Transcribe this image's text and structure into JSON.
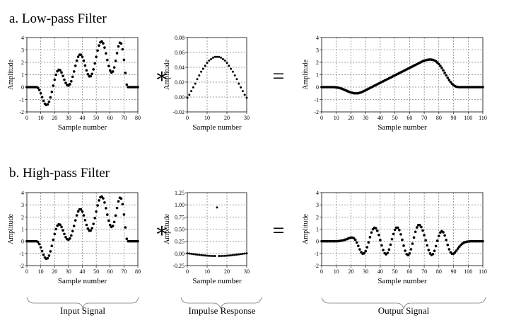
{
  "panel_titles": [
    "a. Low-pass Filter",
    "b. High-pass Filter"
  ],
  "operators": {
    "convolve": "∗",
    "equals": "="
  },
  "captions": [
    "Input Signal",
    "Impulse Response",
    "Output Signal"
  ],
  "chart_data": [
    {
      "type": "scatter",
      "panel": "a",
      "role": "input",
      "xlabel": "Sample number",
      "ylabel": "Amplitude",
      "xlim": [
        0,
        80
      ],
      "ylim": [
        -2,
        4
      ],
      "xticks": [
        0,
        10,
        20,
        30,
        40,
        50,
        60,
        70,
        80
      ],
      "yticks": [
        -2,
        -1,
        0,
        1,
        2,
        3,
        4
      ],
      "ytick_labels": [
        "-2",
        "-1",
        "0",
        "1",
        "2",
        "3",
        "4"
      ],
      "grid": true,
      "x": [
        0,
        1,
        2,
        3,
        4,
        5,
        6,
        7,
        8,
        9,
        10,
        11,
        12,
        13,
        14,
        15,
        16,
        17,
        18,
        19,
        20,
        21,
        22,
        23,
        24,
        25,
        26,
        27,
        28,
        29,
        30,
        31,
        32,
        33,
        34,
        35,
        36,
        37,
        38,
        39,
        40,
        41,
        42,
        43,
        44,
        45,
        46,
        47,
        48,
        49,
        50,
        51,
        52,
        53,
        54,
        55,
        56,
        57,
        58,
        59,
        60,
        61,
        62,
        63,
        64,
        65,
        66,
        67,
        68,
        69,
        70,
        71,
        72,
        73,
        74,
        75,
        76,
        77,
        78,
        79,
        80
      ],
      "y": [
        0,
        0,
        0,
        0,
        0,
        0,
        0,
        0,
        -0.06,
        -0.23,
        -0.5,
        -0.81,
        -1.11,
        -1.34,
        -1.44,
        -1.39,
        -1.18,
        -0.83,
        -0.38,
        0.12,
        0.6,
        1.0,
        1.28,
        1.4,
        1.36,
        1.18,
        0.9,
        0.6,
        0.34,
        0.17,
        0.13,
        0.23,
        0.47,
        0.83,
        1.26,
        1.72,
        2.13,
        2.45,
        2.62,
        2.62,
        2.44,
        2.13,
        1.74,
        1.35,
        1.04,
        0.87,
        0.88,
        1.07,
        1.43,
        1.91,
        2.44,
        2.95,
        3.36,
        3.62,
        3.68,
        3.53,
        3.19,
        2.72,
        2.19,
        1.7,
        1.34,
        1.18,
        1.26,
        1.59,
        2.12,
        2.74,
        3.28,
        3.58,
        3.52,
        3.05,
        2.2,
        1.14,
        0.2,
        0,
        0,
        0,
        0,
        0,
        0,
        0,
        0
      ]
    },
    {
      "type": "scatter",
      "panel": "a",
      "role": "impulse",
      "xlabel": "Sample number",
      "ylabel": "Amplitude",
      "xlim": [
        0,
        30
      ],
      "ylim": [
        -0.02,
        0.08
      ],
      "xticks": [
        0,
        10,
        20,
        30
      ],
      "yticks": [
        -0.02,
        0,
        0.02,
        0.04,
        0.06,
        0.08
      ],
      "ytick_labels": [
        "-0.02",
        "0.00",
        "0.02",
        "0.04",
        "0.06",
        "0.08"
      ],
      "grid": true,
      "x": [
        0,
        1,
        2,
        3,
        4,
        5,
        6,
        7,
        8,
        9,
        10,
        11,
        12,
        13,
        14,
        15,
        16,
        17,
        18,
        19,
        20,
        21,
        22,
        23,
        24,
        25,
        26,
        27,
        28,
        29,
        30
      ],
      "y": [
        -0.001,
        0.003,
        0.008,
        0.013,
        0.018,
        0.024,
        0.029,
        0.034,
        0.038,
        0.042,
        0.046,
        0.049,
        0.051,
        0.053,
        0.054,
        0.054,
        0.054,
        0.053,
        0.051,
        0.049,
        0.046,
        0.042,
        0.038,
        0.034,
        0.029,
        0.024,
        0.018,
        0.013,
        0.008,
        0.003,
        -0.001
      ]
    },
    {
      "type": "scatter",
      "panel": "a",
      "role": "output",
      "xlabel": "Sample number",
      "ylabel": "Amplitude",
      "xlim": [
        0,
        110
      ],
      "ylim": [
        -2,
        4
      ],
      "xticks": [
        0,
        10,
        20,
        30,
        40,
        50,
        60,
        70,
        80,
        90,
        100,
        110
      ],
      "yticks": [
        -2,
        -1,
        0,
        1,
        2,
        3,
        4
      ],
      "ytick_labels": [
        "-2",
        "-1",
        "0",
        "1",
        "2",
        "3",
        "4"
      ],
      "grid": true,
      "x": [
        0,
        1,
        2,
        3,
        4,
        5,
        6,
        7,
        8,
        9,
        10,
        11,
        12,
        13,
        14,
        15,
        16,
        17,
        18,
        19,
        20,
        21,
        22,
        23,
        24,
        25,
        26,
        27,
        28,
        29,
        30,
        31,
        32,
        33,
        34,
        35,
        36,
        37,
        38,
        39,
        40,
        41,
        42,
        43,
        44,
        45,
        46,
        47,
        48,
        49,
        50,
        51,
        52,
        53,
        54,
        55,
        56,
        57,
        58,
        59,
        60,
        61,
        62,
        63,
        64,
        65,
        66,
        67,
        68,
        69,
        70,
        71,
        72,
        73,
        74,
        75,
        76,
        77,
        78,
        79,
        80,
        81,
        82,
        83,
        84,
        85,
        86,
        87,
        88,
        89,
        90,
        91,
        92,
        93,
        94,
        95,
        96,
        97,
        98,
        99,
        100,
        101,
        102,
        103,
        104,
        105,
        106,
        107,
        108,
        109,
        110
      ],
      "y": [
        0,
        0,
        0,
        0,
        0,
        0,
        0,
        0,
        0,
        -0.01,
        -0.02,
        -0.04,
        -0.07,
        -0.1,
        -0.14,
        -0.19,
        -0.24,
        -0.29,
        -0.34,
        -0.39,
        -0.43,
        -0.46,
        -0.49,
        -0.5,
        -0.5,
        -0.49,
        -0.46,
        -0.42,
        -0.37,
        -0.31,
        -0.25,
        -0.19,
        -0.13,
        -0.07,
        -0.01,
        0.05,
        0.11,
        0.17,
        0.23,
        0.29,
        0.35,
        0.41,
        0.47,
        0.53,
        0.59,
        0.65,
        0.71,
        0.77,
        0.83,
        0.89,
        0.95,
        1.01,
        1.07,
        1.13,
        1.19,
        1.25,
        1.31,
        1.37,
        1.43,
        1.49,
        1.55,
        1.61,
        1.67,
        1.73,
        1.79,
        1.85,
        1.91,
        1.97,
        2.03,
        2.09,
        2.13,
        2.17,
        2.2,
        2.22,
        2.23,
        2.22,
        2.2,
        2.15,
        2.08,
        1.98,
        1.86,
        1.71,
        1.54,
        1.35,
        1.15,
        0.95,
        0.75,
        0.57,
        0.41,
        0.27,
        0.16,
        0.08,
        0.03,
        0.01,
        0,
        0,
        0,
        0,
        0,
        0,
        0,
        0,
        0,
        0,
        0,
        0,
        0,
        0,
        0,
        0,
        0
      ]
    },
    {
      "type": "scatter",
      "panel": "b",
      "role": "input",
      "xlabel": "Sample number",
      "ylabel": "Amplitude",
      "xlim": [
        0,
        80
      ],
      "ylim": [
        -2,
        4
      ],
      "xticks": [
        0,
        10,
        20,
        30,
        40,
        50,
        60,
        70,
        80
      ],
      "yticks": [
        -2,
        -1,
        0,
        1,
        2,
        3,
        4
      ],
      "ytick_labels": [
        "-2",
        "-1",
        "0",
        "1",
        "2",
        "3",
        "4"
      ],
      "grid": true,
      "x": [
        0,
        1,
        2,
        3,
        4,
        5,
        6,
        7,
        8,
        9,
        10,
        11,
        12,
        13,
        14,
        15,
        16,
        17,
        18,
        19,
        20,
        21,
        22,
        23,
        24,
        25,
        26,
        27,
        28,
        29,
        30,
        31,
        32,
        33,
        34,
        35,
        36,
        37,
        38,
        39,
        40,
        41,
        42,
        43,
        44,
        45,
        46,
        47,
        48,
        49,
        50,
        51,
        52,
        53,
        54,
        55,
        56,
        57,
        58,
        59,
        60,
        61,
        62,
        63,
        64,
        65,
        66,
        67,
        68,
        69,
        70,
        71,
        72,
        73,
        74,
        75,
        76,
        77,
        78,
        79,
        80
      ],
      "y": [
        0,
        0,
        0,
        0,
        0,
        0,
        0,
        0,
        -0.06,
        -0.23,
        -0.5,
        -0.81,
        -1.11,
        -1.34,
        -1.44,
        -1.39,
        -1.18,
        -0.83,
        -0.38,
        0.12,
        0.6,
        1.0,
        1.28,
        1.4,
        1.36,
        1.18,
        0.9,
        0.6,
        0.34,
        0.17,
        0.13,
        0.23,
        0.47,
        0.83,
        1.26,
        1.72,
        2.13,
        2.45,
        2.62,
        2.62,
        2.44,
        2.13,
        1.74,
        1.35,
        1.04,
        0.87,
        0.88,
        1.07,
        1.43,
        1.91,
        2.44,
        2.95,
        3.36,
        3.62,
        3.68,
        3.53,
        3.19,
        2.72,
        2.19,
        1.7,
        1.34,
        1.18,
        1.26,
        1.59,
        2.12,
        2.74,
        3.28,
        3.58,
        3.52,
        3.05,
        2.2,
        1.14,
        0.2,
        0,
        0,
        0,
        0,
        0,
        0,
        0,
        0
      ]
    },
    {
      "type": "scatter",
      "panel": "b",
      "role": "impulse",
      "xlabel": "Sample number",
      "ylabel": "Amplitude",
      "xlim": [
        0,
        30
      ],
      "ylim": [
        -0.25,
        1.25
      ],
      "xticks": [
        0,
        10,
        20,
        30
      ],
      "yticks": [
        -0.25,
        0,
        0.25,
        0.5,
        0.75,
        1.0,
        1.25
      ],
      "ytick_labels": [
        "-0.25",
        "0.00",
        "0.25",
        "0.50",
        "0.75",
        "1.00",
        "1.25"
      ],
      "grid": true,
      "x": [
        0,
        1,
        2,
        3,
        4,
        5,
        6,
        7,
        8,
        9,
        10,
        11,
        12,
        13,
        14,
        15,
        16,
        17,
        18,
        19,
        20,
        21,
        22,
        23,
        24,
        25,
        26,
        27,
        28,
        29,
        30
      ],
      "y": [
        0.001,
        -0.003,
        -0.008,
        -0.013,
        -0.018,
        -0.024,
        -0.029,
        -0.034,
        -0.038,
        -0.042,
        -0.046,
        -0.049,
        -0.051,
        -0.053,
        -0.054,
        0.946,
        -0.054,
        -0.053,
        -0.051,
        -0.049,
        -0.046,
        -0.042,
        -0.038,
        -0.034,
        -0.029,
        -0.024,
        -0.018,
        -0.013,
        -0.008,
        -0.003,
        0.001
      ]
    },
    {
      "type": "scatter",
      "panel": "b",
      "role": "output",
      "xlabel": "Sample number",
      "ylabel": "Amplitude",
      "xlim": [
        0,
        110
      ],
      "ylim": [
        -2,
        4
      ],
      "xticks": [
        0,
        10,
        20,
        30,
        40,
        50,
        60,
        70,
        80,
        90,
        100,
        110
      ],
      "yticks": [
        -2,
        -1,
        0,
        1,
        2,
        3,
        4
      ],
      "ytick_labels": [
        "-2",
        "-1",
        "0",
        "1",
        "2",
        "3",
        "4"
      ],
      "grid": true,
      "x": [
        0,
        1,
        2,
        3,
        4,
        5,
        6,
        7,
        8,
        9,
        10,
        11,
        12,
        13,
        14,
        15,
        16,
        17,
        18,
        19,
        20,
        21,
        22,
        23,
        24,
        25,
        26,
        27,
        28,
        29,
        30,
        31,
        32,
        33,
        34,
        35,
        36,
        37,
        38,
        39,
        40,
        41,
        42,
        43,
        44,
        45,
        46,
        47,
        48,
        49,
        50,
        51,
        52,
        53,
        54,
        55,
        56,
        57,
        58,
        59,
        60,
        61,
        62,
        63,
        64,
        65,
        66,
        67,
        68,
        69,
        70,
        71,
        72,
        73,
        74,
        75,
        76,
        77,
        78,
        79,
        80,
        81,
        82,
        83,
        84,
        85,
        86,
        87,
        88,
        89,
        90,
        91,
        92,
        93,
        94,
        95,
        96,
        97,
        98,
        99,
        100,
        101,
        102,
        103,
        104,
        105,
        106,
        107,
        108,
        109,
        110
      ],
      "y": [
        0,
        0,
        0,
        0,
        0,
        0,
        0,
        0,
        0,
        0,
        0,
        0.01,
        0.02,
        0.04,
        0.06,
        0.09,
        0.13,
        0.17,
        0.22,
        0.27,
        0.3,
        0.3,
        0.25,
        0.12,
        -0.1,
        -0.38,
        -0.67,
        -0.9,
        -1.02,
        -0.99,
        -0.81,
        -0.49,
        -0.09,
        0.34,
        0.72,
        0.99,
        1.11,
        1.06,
        0.86,
        0.52,
        0.1,
        -0.34,
        -0.72,
        -0.98,
        -1.07,
        -0.96,
        -0.68,
        -0.28,
        0.17,
        0.6,
        0.94,
        1.12,
        1.11,
        0.92,
        0.57,
        0.12,
        -0.36,
        -0.78,
        -1.06,
        -1.14,
        -1.0,
        -0.66,
        -0.2,
        0.31,
        0.78,
        1.14,
        1.33,
        1.33,
        1.17,
        0.88,
        0.5,
        0.08,
        -0.34,
        -0.72,
        -1.0,
        -1.12,
        -1.05,
        -0.79,
        -0.4,
        0.04,
        0.44,
        0.72,
        0.83,
        0.74,
        0.48,
        0.11,
        -0.3,
        -0.66,
        -0.91,
        -1.03,
        -1.02,
        -0.92,
        -0.77,
        -0.6,
        -0.44,
        -0.31,
        -0.2,
        -0.12,
        -0.07,
        -0.04,
        -0.02,
        -0.01,
        0,
        0,
        0,
        0,
        0,
        0,
        0,
        0,
        0
      ]
    }
  ]
}
